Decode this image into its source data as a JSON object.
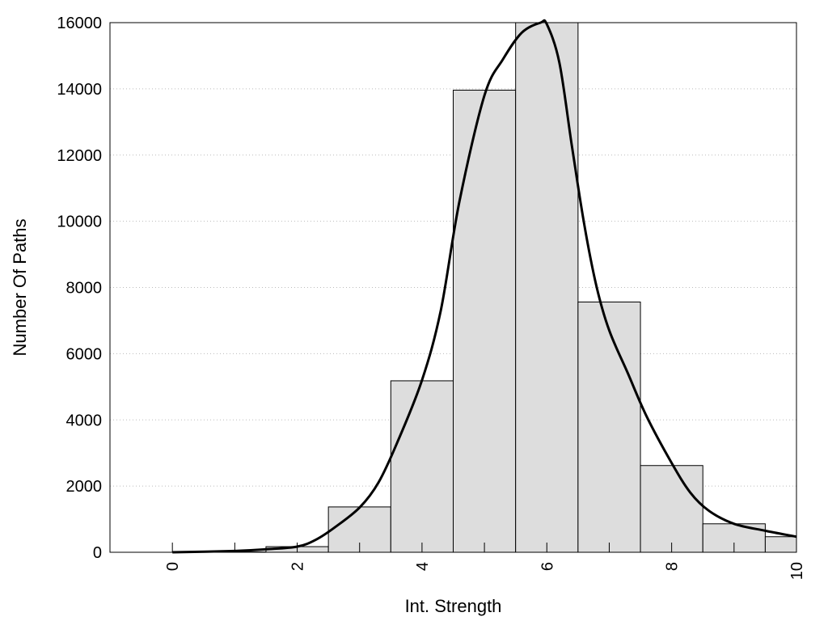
{
  "chart_data": {
    "type": "bar",
    "title": "",
    "xlabel": "Int. Strength",
    "ylabel": "Number Of Paths",
    "xlim": [
      -1,
      10
    ],
    "ylim": [
      0,
      16000
    ],
    "xticks": [
      0,
      2,
      4,
      6,
      8,
      10
    ],
    "yticks": [
      0,
      2000,
      4000,
      6000,
      8000,
      10000,
      12000,
      14000,
      16000
    ],
    "grid": "horizontal-dotted",
    "legend": "none",
    "bar_color": "#dddddd",
    "bars": {
      "x": [
        0,
        1,
        2,
        3,
        4,
        5,
        6,
        7,
        8,
        9,
        10
      ],
      "values": [
        0,
        10,
        170,
        1370,
        5180,
        13960,
        16000,
        7560,
        2620,
        860,
        470
      ]
    },
    "curve": {
      "x": [
        0,
        1,
        1.5,
        2,
        2.3,
        2.6,
        3,
        3.3,
        3.6,
        4,
        4.3,
        4.6,
        5,
        5.3,
        5.6,
        5.9,
        6,
        6.2,
        6.4,
        6.6,
        6.8,
        7,
        7.3,
        7.6,
        8,
        8.3,
        8.6,
        9,
        9.5,
        10
      ],
      "y": [
        0,
        40,
        90,
        170,
        380,
        750,
        1350,
        2100,
        3300,
        5200,
        7300,
        10600,
        13800,
        14900,
        15700,
        16000,
        15950,
        14800,
        12300,
        9900,
        8000,
        6700,
        5400,
        4100,
        2700,
        1800,
        1250,
        860,
        650,
        470
      ]
    }
  }
}
